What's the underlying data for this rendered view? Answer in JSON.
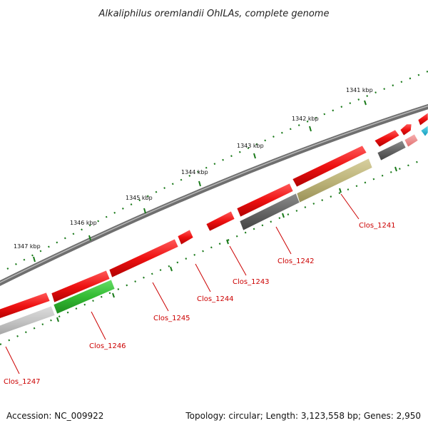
{
  "title": "Alkaliphilus oremlandii OhILAs, complete genome",
  "footer": {
    "accession": "Accession: NC_009922",
    "topology": "Topology: circular; Length: 3,123,558 bp; Genes: 2,950"
  },
  "kbp_labels": [
    "1341 kbp",
    "1342 kbp",
    "1343 kbp",
    "1344 kbp",
    "1345 kbp",
    "1346 kbp",
    "1347 kbp"
  ],
  "gene_labels": [
    "Clos_1241",
    "Clos_1242",
    "Clos_1243",
    "Clos_1244",
    "Clos_1245",
    "Clos_1246",
    "Clos_1247"
  ],
  "colors": {
    "backbone": "#8a8a8a",
    "red": "#ee1111",
    "dark_gray": "#666666",
    "olive": "#bdb47a",
    "green": "#33bb33",
    "light_gray": "#c4c4c4",
    "pink": "#f08a8a",
    "cyan": "#22bbdd",
    "tick": "#1a7a1a",
    "label": "#cc0000"
  }
}
